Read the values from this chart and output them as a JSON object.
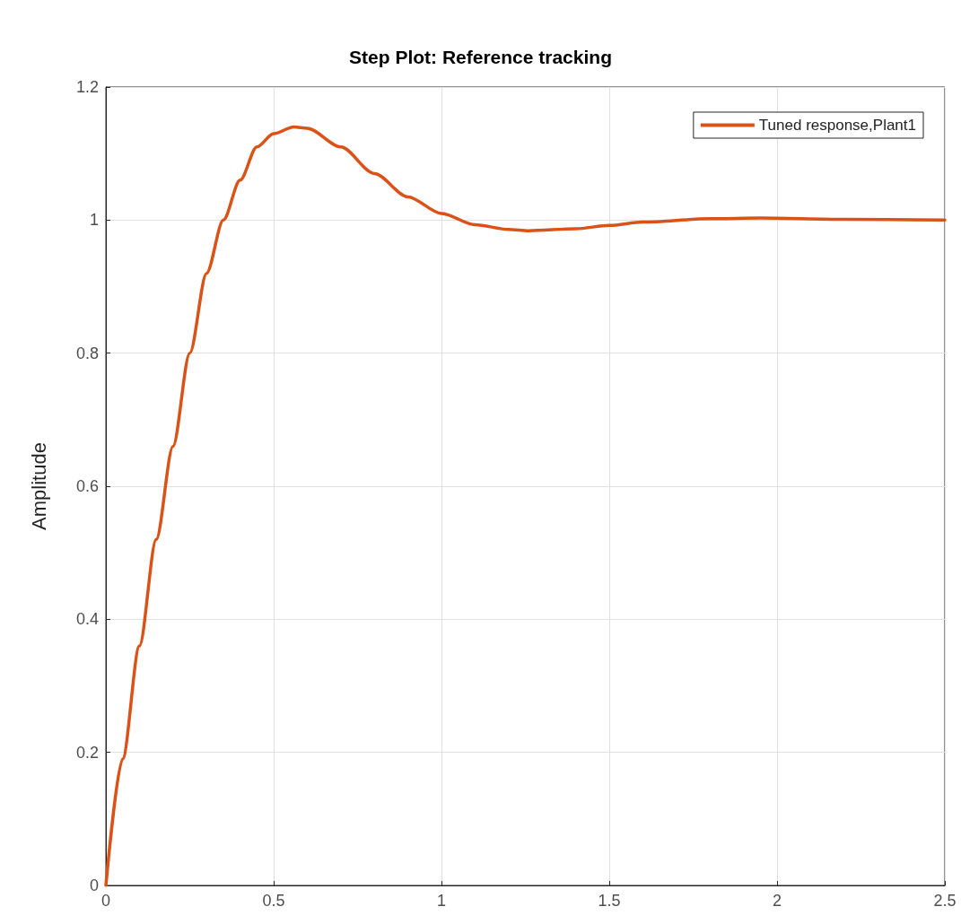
{
  "chart_data": {
    "type": "line",
    "title": "Step Plot: Reference tracking",
    "ylabel": "Amplitude",
    "x": [
      0,
      0.05,
      0.1,
      0.15,
      0.2,
      0.25,
      0.3,
      0.35,
      0.4,
      0.45,
      0.5,
      0.56,
      0.6,
      0.7,
      0.8,
      0.9,
      1.0,
      1.1,
      1.2,
      1.26,
      1.4,
      1.5,
      1.6,
      1.8,
      1.95,
      2.2,
      2.5
    ],
    "series": [
      {
        "name": "Tuned response,Plant1",
        "color": "#d95319",
        "values": [
          0,
          0.19,
          0.36,
          0.52,
          0.66,
          0.8,
          0.92,
          1.0,
          1.06,
          1.11,
          1.13,
          1.14,
          1.138,
          1.11,
          1.07,
          1.035,
          1.01,
          0.993,
          0.986,
          0.984,
          0.987,
          0.992,
          0.997,
          1.002,
          1.003,
          1.001,
          1.0
        ]
      }
    ],
    "xlim": [
      0,
      2.5
    ],
    "xticks": [
      0,
      0.5,
      1,
      1.5,
      2,
      2.5
    ],
    "ylim": [
      0,
      1.2
    ],
    "yticks": [
      0,
      0.2,
      0.4,
      0.6,
      0.8,
      1,
      1.2
    ],
    "grid": true,
    "legend": "top right",
    "marker": "none",
    "line_style": "solid"
  }
}
